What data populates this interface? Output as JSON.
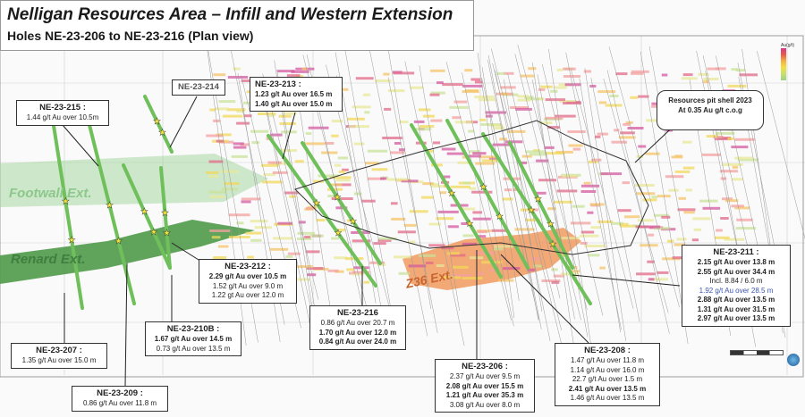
{
  "title": "Nelligan Resources Area – Infill and Western Extension",
  "subtitle": "Holes NE-23-206 to NE-23-216 (Plan view)",
  "zones": {
    "footwall": "Footwall Ext.",
    "renard": "Renard Ext.",
    "z36": "Z36 Ext."
  },
  "legend": {
    "title": "Au(g/t)"
  },
  "pit_shell": {
    "line1": "Resources pit shell 2023",
    "line2": "At 0.35 Au g/t c.o.g"
  },
  "holes": {
    "h215": {
      "name": "NE-23-215 :",
      "lines": [
        "1.44 g/t Au over 10.5m"
      ]
    },
    "h214": {
      "name": "NE-23-214",
      "lines": []
    },
    "h213": {
      "name": "NE-23-213 :",
      "lines": [
        "1.23 g/t Au over 16.5 m",
        "1.40 g/t Au over 15.0 m"
      ]
    },
    "h212": {
      "name": "NE-23-212 :",
      "lines": [
        "2.29 g/t Au over 10.5 m",
        "1.52 g/t Au over 9.0 m",
        "1.22 gt Au over 12.0 m"
      ]
    },
    "h216": {
      "name": "NE-23-216",
      "lines": [
        "0.86 g/t Au over 20.7 m",
        "1.70 g/t Au over 12.0 m",
        "0.84 g/t Au over 24.0 m"
      ]
    },
    "h210b": {
      "name": "NE-23-210B :",
      "lines": [
        "1.67 g/t Au over 14.5 m",
        "0.73 g/t Au over 13.5 m"
      ]
    },
    "h207": {
      "name": "NE-23-207 :",
      "lines": [
        "1.35 g/t Au over 15.0 m"
      ]
    },
    "h209": {
      "name": "NE-23-209 :",
      "lines": [
        "0.86 g/t Au over 11.8 m"
      ]
    },
    "h206": {
      "name": "NE-23-206 :",
      "lines": [
        "2.37 g/t Au over 9.5 m",
        "2.08 g/t Au over 15.5 m",
        "1.21 g/t Au over 35.3 m",
        "3.08 g/t Au over 8.0 m"
      ]
    },
    "h208": {
      "name": "NE-23-208 :",
      "lines": [
        "1.47 g/t Au over 11.8 m",
        "1.14 g/t Au over 16.0 m",
        "22.7 g/t Au over 1.5 m",
        "2.41 g/t Au over 13.5 m",
        "1.46 g/t Au over 13.5 m"
      ]
    },
    "h211": {
      "name": "NE-23-211 :",
      "lines": [
        "2.15 g/t Au over 13.8 m",
        "2.55 g/t Au over 34.4 m",
        "Incl. 8.84 / 6.0 m",
        "1.92 g/t Au over 28.5 m",
        "2.88 g/t Au over 13.5 m",
        "1.31 g/t Au over 31.5 m",
        "2.97 g/t Au over 13.5 m"
      ]
    }
  },
  "colors": {
    "footwall": "#9fd49a",
    "renard": "#4f9a4a",
    "z36": "#f19a5e",
    "hole_trace": "#6fbf5a",
    "star": "#f5e43a"
  }
}
